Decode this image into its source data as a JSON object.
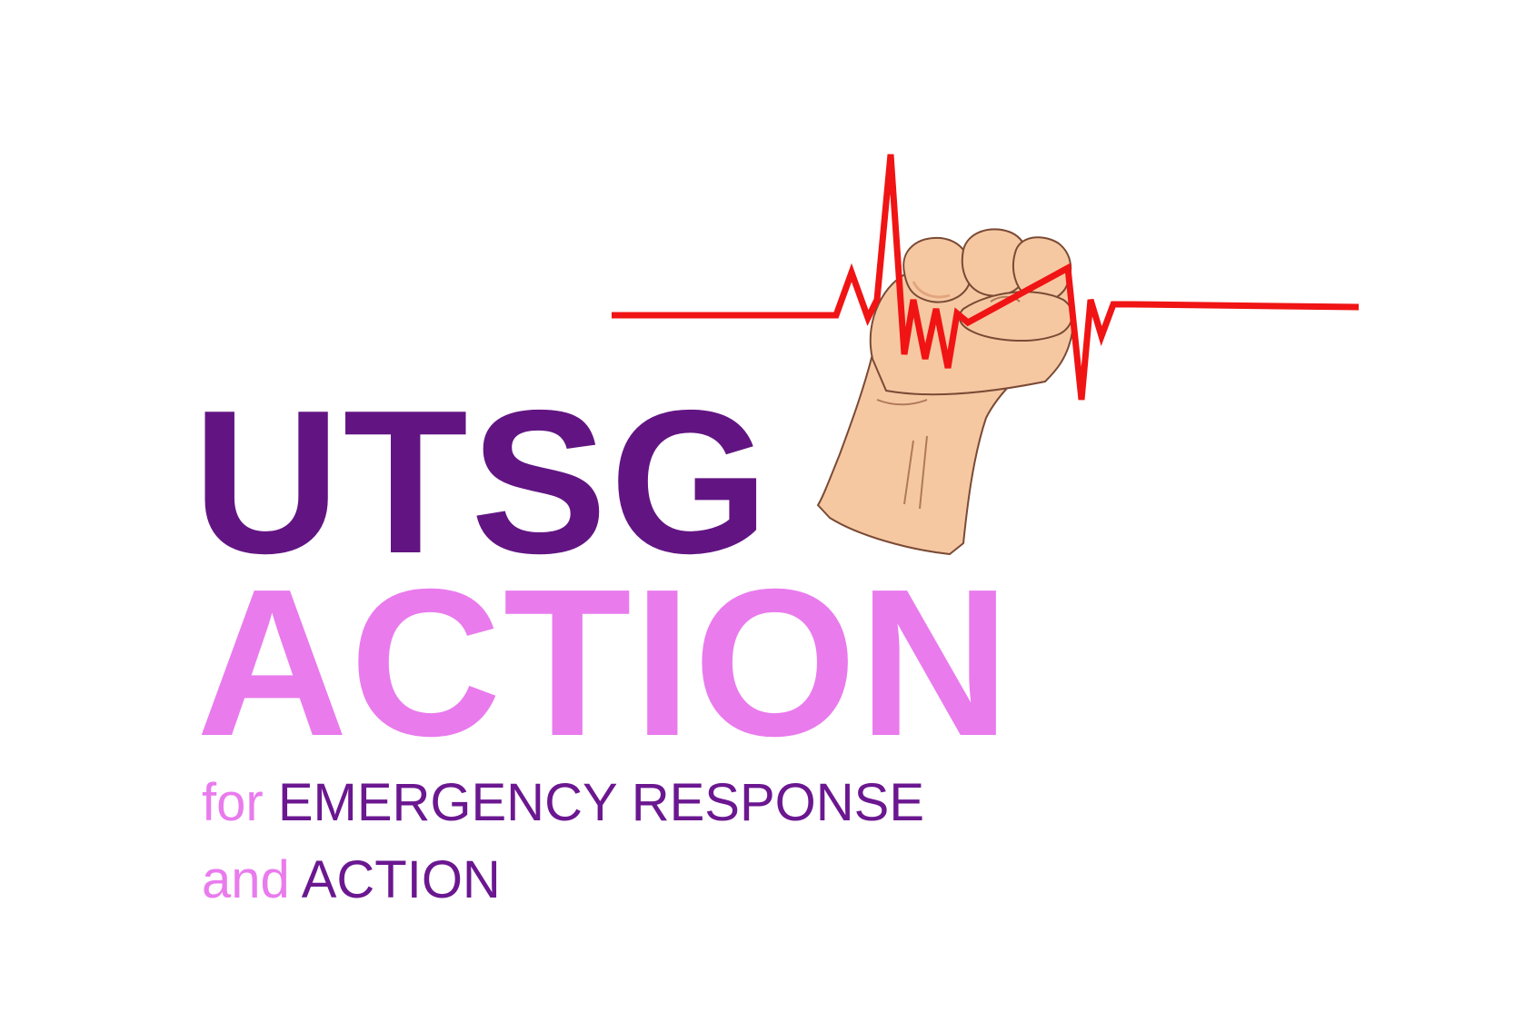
{
  "logo": {
    "title_line_1": "UTSG",
    "title_line_2": "ACTION",
    "tagline_line_1": {
      "prefix": "for",
      "emphasis": "EMERGENCY RESPONSE"
    },
    "tagline_line_2": {
      "prefix": "and",
      "emphasis": "ACTION"
    },
    "icons": {
      "fist": "raised-fist-icon",
      "heartbeat": "heartbeat-line-icon"
    },
    "colors": {
      "dark_purple": "#621582",
      "light_pink": "#e97bed",
      "tagline_purple": "#6b1790",
      "heartbeat_red": "#f01414",
      "skin": "#f6c8a2",
      "skin_shadow": "#e2a57f",
      "outline": "#7a4a35"
    }
  }
}
